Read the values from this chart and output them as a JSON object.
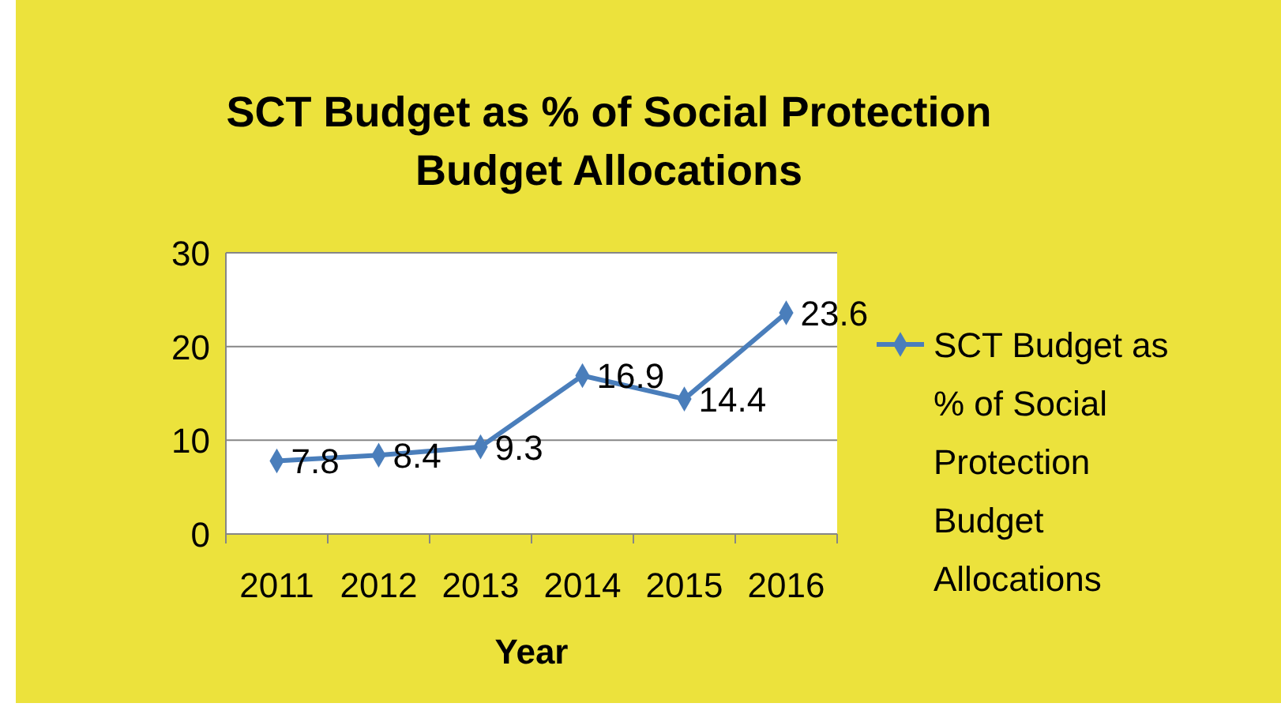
{
  "chart_data": {
    "type": "line",
    "title": "SCT Budget as % of Social Protection Budget Allocations",
    "xlabel": "Year",
    "categories": [
      "2011",
      "2012",
      "2013",
      "2014",
      "2015",
      "2016"
    ],
    "series": [
      {
        "name": "SCT Budget as % of Social Protection Budget Allocations",
        "color": "#4a7ebb",
        "values": [
          7.8,
          8.4,
          9.3,
          16.9,
          14.4,
          23.6
        ]
      }
    ],
    "ylim": [
      0,
      30
    ],
    "yticks": [
      0,
      10,
      20,
      30
    ],
    "grid": "y",
    "legend": "right",
    "marker": "diamond",
    "line_style": "solid",
    "data_labels": true
  }
}
